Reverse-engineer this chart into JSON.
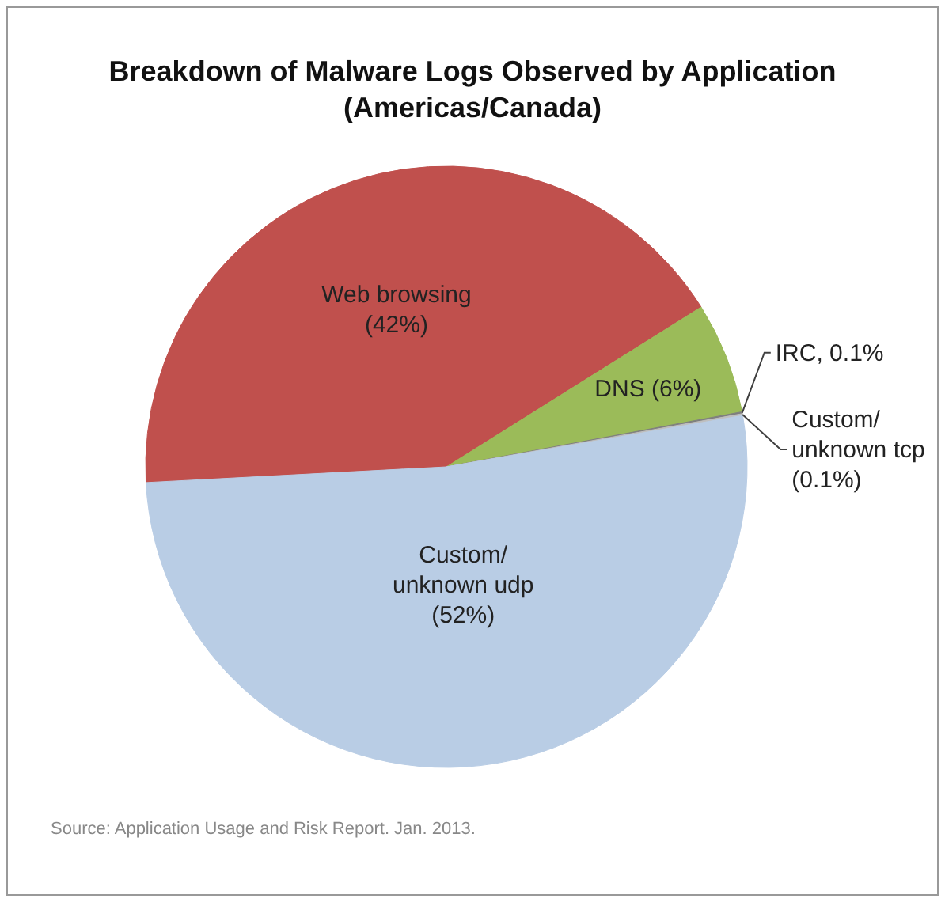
{
  "chart_data": {
    "type": "pie",
    "title": "Breakdown of Malware Logs Observed by Application\n(Americas/Canada)",
    "categories": [
      "Web browsing",
      "DNS",
      "IRC",
      "Custom/ unknown tcp",
      "Custom/ unknown udp"
    ],
    "values": [
      42,
      6,
      0.1,
      0.1,
      52
    ],
    "value_labels": [
      "(42%)",
      "(6%)",
      "0.1%",
      "(0.1%)",
      "(52%)"
    ],
    "colors": [
      "#c0504d",
      "#9bbb59",
      "#7f7f7f",
      "#bfbfbf",
      "#b9cde5"
    ],
    "legend": false,
    "annotations": [
      "Source: Application Usage and Risk Report. Jan. 2013."
    ]
  }
}
